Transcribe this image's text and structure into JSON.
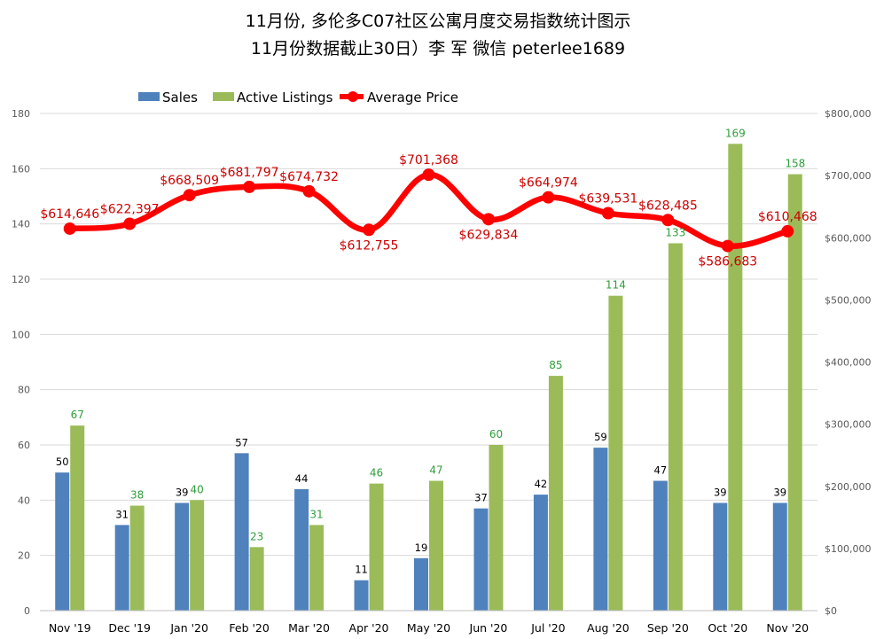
{
  "chart_data": {
    "type": "bar",
    "title": "11月份, 多伦多C07社区公寓月度交易指数统计图示",
    "subtitle": "11月份数据截止30日）李 军  微信  peterlee1689",
    "categories": [
      "Nov '19",
      "Dec '19",
      "Jan '20",
      "Feb '20",
      "Mar '20",
      "Apr '20",
      "May '20",
      "Jun '20",
      "Jul '20",
      "Aug '20",
      "Sep '20",
      "Oct '20",
      "Nov '20"
    ],
    "series": [
      {
        "name": "Sales",
        "type": "bar",
        "axis": "left",
        "values": [
          50,
          31,
          39,
          57,
          44,
          11,
          19,
          37,
          42,
          59,
          47,
          39,
          39
        ]
      },
      {
        "name": "Active Listings",
        "type": "bar",
        "axis": "left",
        "values": [
          67,
          38,
          40,
          23,
          31,
          46,
          47,
          60,
          85,
          114,
          133,
          169,
          158
        ]
      },
      {
        "name": "Average Price",
        "type": "line",
        "axis": "right",
        "values": [
          614646,
          622397,
          668509,
          681797,
          674732,
          612755,
          701368,
          629834,
          664974,
          639531,
          628485,
          586683,
          610468
        ]
      }
    ],
    "data_labels": {
      "Sales": [
        "50",
        "31",
        "39",
        "57",
        "44",
        "11",
        "19",
        "37",
        "42",
        "59",
        "47",
        "39",
        "39"
      ],
      "Active Listings": [
        "67",
        "38",
        "40",
        "23",
        "31",
        "46",
        "47",
        "60",
        "85",
        "114",
        "133",
        "169",
        "158"
      ],
      "Average Price": [
        "$614,646",
        "$622,397",
        "$668,509",
        "$681,797",
        "$674,732",
        "$612,755",
        "$701,368",
        "$629,834",
        "$664,974",
        "$639,531",
        "$628,485",
        "$586,683",
        "$610,468"
      ]
    },
    "left_axis": {
      "min": 0,
      "max": 180,
      "ticks": [
        "0",
        "20",
        "40",
        "60",
        "80",
        "100",
        "120",
        "140",
        "160",
        "180"
      ]
    },
    "right_axis": {
      "min": 0,
      "max": 800000,
      "ticks": [
        "$0",
        "$100,000",
        "$200,000",
        "$300,000",
        "$400,000",
        "$500,000",
        "$600,000",
        "$700,000",
        "$800,000"
      ]
    },
    "legend": [
      "Sales",
      "Active Listings",
      "Average Price"
    ],
    "legend_position": "top-center",
    "grid": true,
    "colors": {
      "Sales": "#4f81bd",
      "Active Listings": "#9bbb59",
      "Average Price": "#ff0000",
      "active_label": "#2e9e3a",
      "price_label": "#cc0000",
      "grid": "#d9d9d9"
    }
  }
}
